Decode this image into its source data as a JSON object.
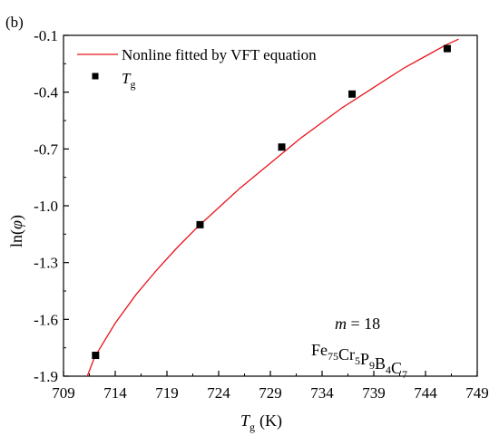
{
  "panel_label": "(b)",
  "chart_data": {
    "type": "scatter",
    "xlabel": {
      "base": "T",
      "sub": "g",
      "unit": "(K)"
    },
    "ylabel": {
      "prefix": "ln(",
      "symbol": "φ",
      "suffix": ")"
    },
    "xlim": [
      709,
      749
    ],
    "ylim": [
      -1.9,
      -0.1
    ],
    "xticks": [
      709,
      714,
      719,
      724,
      729,
      734,
      739,
      744,
      749
    ],
    "xtick_labels": [
      "709",
      "714",
      "719",
      "724",
      "729",
      "734",
      "739",
      "744",
      "749"
    ],
    "yticks": [
      -1.9,
      -1.6,
      -1.3,
      -1.0,
      -0.7,
      -0.4,
      -0.1
    ],
    "ytick_labels": [
      "-1.9",
      "-1.6",
      "-1.3",
      "-1.0",
      "-0.7",
      "-0.4",
      "-0.1"
    ],
    "grid": false,
    "legend_position": "top-left",
    "series": [
      {
        "name": "Nonline fitted by VFT equation",
        "kind": "line",
        "color": "#e8141c",
        "x": [
          711.3,
          712,
          714,
          716,
          718,
          720,
          722,
          724,
          726,
          728,
          730,
          732,
          734,
          736,
          738,
          740,
          742,
          744,
          746,
          747.2
        ],
        "y": [
          -1.9,
          -1.8,
          -1.62,
          -1.47,
          -1.34,
          -1.22,
          -1.11,
          -1.01,
          -0.91,
          -0.82,
          -0.73,
          -0.64,
          -0.56,
          -0.48,
          -0.41,
          -0.34,
          -0.27,
          -0.21,
          -0.15,
          -0.12
        ]
      },
      {
        "name": {
          "base": "T",
          "sub": "g"
        },
        "kind": "scatter",
        "color": "#000000",
        "x": [
          712.1,
          722.2,
          730.1,
          736.9,
          746.1
        ],
        "y": [
          -1.79,
          -1.1,
          -0.69,
          -0.41,
          -0.17
        ]
      }
    ],
    "annotation": {
      "m_symbol": "m",
      "m_value": "= 18",
      "formula": [
        {
          "el": "Fe",
          "n": "75"
        },
        {
          "el": "Cr",
          "n": "5"
        },
        {
          "el": "P",
          "n": "9"
        },
        {
          "el": "B",
          "n": "4"
        },
        {
          "el": "C",
          "n": "7"
        }
      ]
    }
  }
}
